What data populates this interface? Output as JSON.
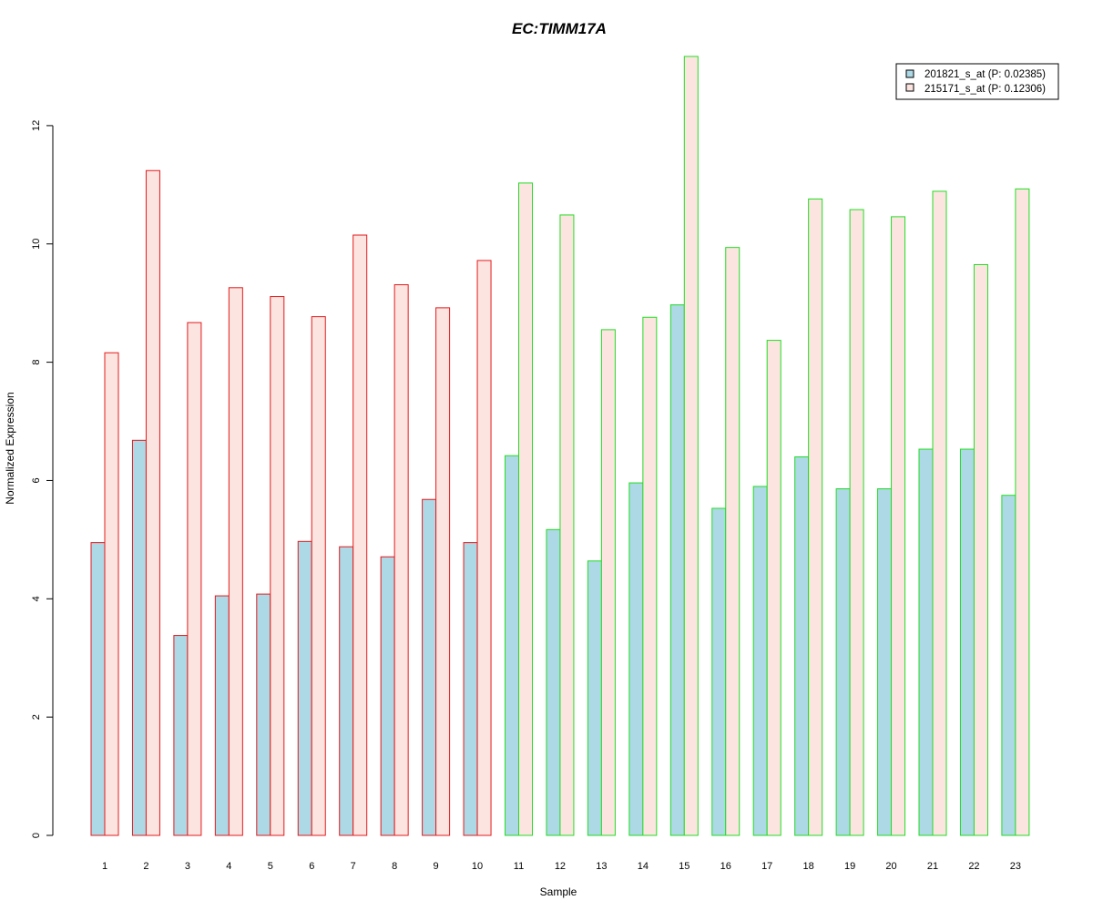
{
  "colors": {
    "series1_fill": "#add8e6",
    "series2_fill": "#fce5e0",
    "group1_border": "#e41a1c",
    "group2_border": "#22dd22",
    "title": "#1a1acd"
  },
  "chart_data": {
    "type": "bar",
    "title": "EC:TIMM17A",
    "xlabel": "Sample",
    "ylabel": "Normalized Expression",
    "ylim": [
      0,
      13.2
    ],
    "yticks": [
      0,
      2,
      4,
      6,
      8,
      10,
      12
    ],
    "grid": false,
    "legend_position": "top-right",
    "categories": [
      "1",
      "2",
      "3",
      "4",
      "5",
      "6",
      "7",
      "8",
      "9",
      "10",
      "11",
      "12",
      "13",
      "14",
      "15",
      "16",
      "17",
      "18",
      "19",
      "20",
      "21",
      "22",
      "23"
    ],
    "border_group": [
      "group1",
      "group1",
      "group1",
      "group1",
      "group1",
      "group1",
      "group1",
      "group1",
      "group1",
      "group1",
      "group2",
      "group2",
      "group2",
      "group2",
      "group2",
      "group2",
      "group2",
      "group2",
      "group2",
      "group2",
      "group2",
      "group2",
      "group2"
    ],
    "series": [
      {
        "name": "201821_s_at (P: 0.02385)",
        "values": [
          4.95,
          6.68,
          3.38,
          4.05,
          4.08,
          4.97,
          4.88,
          4.71,
          5.68,
          4.95,
          6.42,
          5.17,
          4.64,
          5.96,
          8.97,
          5.53,
          5.9,
          6.4,
          5.86,
          5.86,
          6.53,
          6.53,
          5.75
        ]
      },
      {
        "name": "215171_s_at (P: 0.12306)",
        "values": [
          8.16,
          11.24,
          8.67,
          9.26,
          9.11,
          8.77,
          10.15,
          9.31,
          8.92,
          9.72,
          11.03,
          10.49,
          8.55,
          8.76,
          13.17,
          9.94,
          8.37,
          10.76,
          10.58,
          10.46,
          10.89,
          9.65,
          10.93
        ]
      }
    ]
  }
}
